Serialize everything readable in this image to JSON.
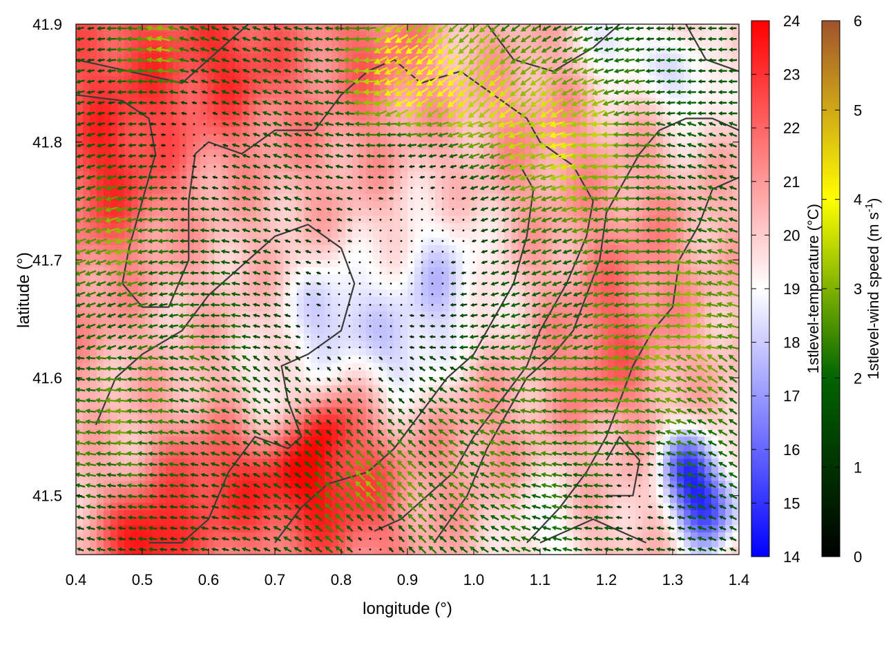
{
  "chart_data": {
    "type": "heatmap",
    "title": "",
    "xlabel": "longitude (°)",
    "ylabel": "latitude (°)",
    "xlim": [
      0.4,
      1.4
    ],
    "ylim": [
      41.45,
      41.9
    ],
    "x_ticks": [
      {
        "value": 0.4,
        "label": "0.4"
      },
      {
        "value": 0.5,
        "label": "0.5"
      },
      {
        "value": 0.6,
        "label": "0.6"
      },
      {
        "value": 0.7,
        "label": "0.7"
      },
      {
        "value": 0.8,
        "label": "0.8"
      },
      {
        "value": 0.9,
        "label": "0.9"
      },
      {
        "value": 1.0,
        "label": "1.0"
      },
      {
        "value": 1.1,
        "label": "1.1"
      },
      {
        "value": 1.2,
        "label": "1.2"
      },
      {
        "value": 1.3,
        "label": "1.3"
      },
      {
        "value": 1.4,
        "label": "1.4"
      }
    ],
    "y_ticks": [
      {
        "value": 41.5,
        "label": "41.5"
      },
      {
        "value": 41.6,
        "label": "41.6"
      },
      {
        "value": 41.7,
        "label": "41.7"
      },
      {
        "value": 41.8,
        "label": "41.8"
      },
      {
        "value": 41.9,
        "label": "41.9"
      }
    ],
    "temperature_colorbar": {
      "label": "1stlevel-temperature (°C)",
      "range": [
        14,
        24
      ],
      "ticks": [
        {
          "value": 14,
          "label": "14"
        },
        {
          "value": 15,
          "label": "15"
        },
        {
          "value": 16,
          "label": "16"
        },
        {
          "value": 17,
          "label": "17"
        },
        {
          "value": 18,
          "label": "18"
        },
        {
          "value": 19,
          "label": "19"
        },
        {
          "value": 20,
          "label": "20"
        },
        {
          "value": 21,
          "label": "21"
        },
        {
          "value": 22,
          "label": "22"
        },
        {
          "value": 23,
          "label": "23"
        },
        {
          "value": 24,
          "label": "24"
        }
      ],
      "colors": [
        "#0000ff",
        "#ffffff",
        "#ff0000"
      ]
    },
    "wind_colorbar": {
      "label_main": "1stlevel-wind speed (m s",
      "label_sup": "-1",
      "label_end": ")",
      "range": [
        0,
        6
      ],
      "ticks": [
        {
          "value": 0,
          "label": "0"
        },
        {
          "value": 1,
          "label": "1"
        },
        {
          "value": 2,
          "label": "2"
        },
        {
          "value": 3,
          "label": "3"
        },
        {
          "value": 4,
          "label": "4"
        },
        {
          "value": 5,
          "label": "5"
        },
        {
          "value": 6,
          "label": "6"
        }
      ],
      "colors": [
        "#000000",
        "#006400",
        "#ffff00",
        "#a0522d"
      ]
    },
    "temperature_anomalies": [
      {
        "lon": 0.47,
        "lat": 41.86,
        "value": 22.6,
        "spread": 0.1
      },
      {
        "lon": 0.65,
        "lat": 41.87,
        "value": 22.4,
        "spread": 0.07
      },
      {
        "lon": 0.85,
        "lat": 41.88,
        "value": 21.8,
        "spread": 0.06
      },
      {
        "lon": 0.45,
        "lat": 41.76,
        "value": 22.0,
        "spread": 0.06
      },
      {
        "lon": 0.6,
        "lat": 41.5,
        "value": 22.8,
        "spread": 0.06
      },
      {
        "lon": 0.8,
        "lat": 41.5,
        "value": 22.8,
        "spread": 0.07
      },
      {
        "lon": 0.5,
        "lat": 41.46,
        "value": 23.6,
        "spread": 0.04
      },
      {
        "lon": 0.72,
        "lat": 41.52,
        "value": 22.2,
        "spread": 0.05
      },
      {
        "lon": 1.2,
        "lat": 41.62,
        "value": 21.8,
        "spread": 0.06
      },
      {
        "lon": 1.25,
        "lat": 41.7,
        "value": 21.2,
        "spread": 0.07
      },
      {
        "lon": 0.8,
        "lat": 41.8,
        "value": 20.8,
        "spread": 0.07
      },
      {
        "lon": 1.1,
        "lat": 41.8,
        "value": 21.0,
        "spread": 0.08
      },
      {
        "lon": 1.0,
        "lat": 41.55,
        "value": 21.0,
        "spread": 0.06
      },
      {
        "lon": 0.78,
        "lat": 41.56,
        "value": 22.0,
        "spread": 0.025
      },
      {
        "lon": 0.42,
        "lat": 41.65,
        "value": 21.0,
        "spread": 0.05
      },
      {
        "lon": 0.79,
        "lat": 41.65,
        "value": 17.8,
        "spread": 0.05
      },
      {
        "lon": 0.95,
        "lat": 41.68,
        "value": 18.1,
        "spread": 0.06
      },
      {
        "lon": 1.35,
        "lat": 41.49,
        "value": 15.2,
        "spread": 0.035
      },
      {
        "lon": 1.32,
        "lat": 41.53,
        "value": 16.8,
        "spread": 0.03
      },
      {
        "lon": 1.22,
        "lat": 41.88,
        "value": 18.2,
        "spread": 0.04
      },
      {
        "lon": 1.33,
        "lat": 41.85,
        "value": 18.4,
        "spread": 0.04
      },
      {
        "lon": 0.7,
        "lat": 41.58,
        "value": 18.7,
        "spread": 0.04
      },
      {
        "lon": 0.9,
        "lat": 41.61,
        "value": 18.6,
        "spread": 0.04
      },
      {
        "lon": 1.1,
        "lat": 41.47,
        "value": 18.8,
        "spread": 0.04
      }
    ],
    "wind": {
      "direction": "westward",
      "speed_anomalies": [
        {
          "lon": 0.98,
          "lat": 41.83,
          "value": 3.8,
          "spread": 0.08
        },
        {
          "lon": 0.88,
          "lat": 41.86,
          "value": 3.6,
          "spread": 0.05
        },
        {
          "lon": 1.15,
          "lat": 41.8,
          "value": 3.4,
          "spread": 0.07
        },
        {
          "lon": 0.45,
          "lat": 41.72,
          "value": 3.0,
          "spread": 0.05
        },
        {
          "lon": 0.84,
          "lat": 41.5,
          "value": 3.0,
          "spread": 0.05
        },
        {
          "lon": 0.52,
          "lat": 41.88,
          "value": 3.2,
          "spread": 0.04
        },
        {
          "lon": 0.45,
          "lat": 41.56,
          "value": 2.6,
          "spread": 0.06
        },
        {
          "lon": 1.35,
          "lat": 41.66,
          "value": 2.6,
          "spread": 0.08
        },
        {
          "lon": 1.0,
          "lat": 41.55,
          "value": 2.4,
          "spread": 0.12
        },
        {
          "lon": 1.25,
          "lat": 41.6,
          "value": 2.4,
          "spread": 0.1
        },
        {
          "lon": 0.6,
          "lat": 41.62,
          "value": 2.2,
          "spread": 0.08
        },
        {
          "lon": 0.7,
          "lat": 41.8,
          "value": 1.8,
          "spread": 0.08
        },
        {
          "lon": 0.5,
          "lat": 41.82,
          "value": 1.4,
          "spread": 0.06
        },
        {
          "lon": 1.28,
          "lat": 41.83,
          "value": 1.8,
          "spread": 0.06
        }
      ],
      "calm_regions": [
        {
          "lon": 0.83,
          "lat": 41.66,
          "radius": 0.085
        },
        {
          "lon": 0.93,
          "lat": 41.73,
          "radius": 0.07
        },
        {
          "lon": 0.58,
          "lat": 41.8,
          "radius": 0.035
        },
        {
          "lon": 1.25,
          "lat": 41.5,
          "radius": 0.03
        },
        {
          "lon": 0.85,
          "lat": 41.46,
          "radius": 0.025
        }
      ]
    },
    "coastlines": [
      [
        [
          0.4,
          41.87
        ],
        [
          0.48,
          41.86
        ],
        [
          0.56,
          41.85
        ],
        [
          0.62,
          41.88
        ],
        [
          0.66,
          41.9
        ]
      ],
      [
        [
          0.4,
          41.84
        ],
        [
          0.47,
          41.835
        ],
        [
          0.51,
          41.82
        ],
        [
          0.52,
          41.79
        ],
        [
          0.5,
          41.75
        ],
        [
          0.48,
          41.71
        ],
        [
          0.47,
          41.68
        ]
      ],
      [
        [
          0.47,
          41.68
        ],
        [
          0.5,
          41.66
        ],
        [
          0.54,
          41.66
        ],
        [
          0.57,
          41.7
        ],
        [
          0.57,
          41.75
        ],
        [
          0.58,
          41.79
        ],
        [
          0.6,
          41.8
        ],
        [
          0.65,
          41.79
        ],
        [
          0.7,
          41.81
        ],
        [
          0.76,
          41.81
        ],
        [
          0.8,
          41.84
        ],
        [
          0.84,
          41.86
        ],
        [
          0.88,
          41.87
        ],
        [
          0.92,
          41.85
        ],
        [
          0.98,
          41.86
        ],
        [
          1.03,
          41.84
        ],
        [
          1.08,
          41.82
        ],
        [
          1.1,
          41.8
        ],
        [
          1.15,
          41.78
        ],
        [
          1.18,
          41.75
        ],
        [
          1.17,
          41.72
        ],
        [
          1.14,
          41.68
        ],
        [
          1.12,
          41.66
        ],
        [
          1.1,
          41.64
        ],
        [
          1.08,
          41.61
        ],
        [
          1.04,
          41.58
        ],
        [
          1.0,
          41.55
        ],
        [
          0.97,
          41.52
        ],
        [
          0.93,
          41.5
        ],
        [
          0.89,
          41.48
        ],
        [
          0.85,
          41.47
        ]
      ],
      [
        [
          0.43,
          41.56
        ],
        [
          0.46,
          41.6
        ],
        [
          0.5,
          41.62
        ],
        [
          0.56,
          41.64
        ],
        [
          0.6,
          41.67
        ],
        [
          0.66,
          41.7
        ],
        [
          0.7,
          41.72
        ],
        [
          0.75,
          41.73
        ],
        [
          0.8,
          41.71
        ],
        [
          0.82,
          41.68
        ],
        [
          0.8,
          41.64
        ],
        [
          0.75,
          41.62
        ],
        [
          0.71,
          41.61
        ],
        [
          0.72,
          41.58
        ],
        [
          0.74,
          41.55
        ],
        [
          0.72,
          41.54
        ],
        [
          0.67,
          41.55
        ],
        [
          0.63,
          41.52
        ],
        [
          0.6,
          41.48
        ],
        [
          0.56,
          41.46
        ],
        [
          0.51,
          41.46
        ]
      ],
      [
        [
          0.7,
          41.46
        ],
        [
          0.74,
          41.49
        ],
        [
          0.78,
          41.51
        ],
        [
          0.84,
          41.52
        ],
        [
          0.88,
          41.54
        ],
        [
          0.92,
          41.57
        ],
        [
          0.96,
          41.6
        ],
        [
          1.0,
          41.62
        ],
        [
          1.03,
          41.65
        ],
        [
          1.06,
          41.68
        ],
        [
          1.08,
          41.72
        ],
        [
          1.09,
          41.76
        ],
        [
          1.07,
          41.78
        ]
      ],
      [
        [
          0.94,
          41.46
        ],
        [
          0.99,
          41.5
        ],
        [
          1.02,
          41.54
        ],
        [
          1.05,
          41.57
        ],
        [
          1.08,
          41.6
        ],
        [
          1.12,
          41.62
        ],
        [
          1.15,
          41.64
        ],
        [
          1.17,
          41.67
        ],
        [
          1.19,
          41.7
        ],
        [
          1.2,
          41.74
        ],
        [
          1.22,
          41.76
        ],
        [
          1.25,
          41.79
        ],
        [
          1.28,
          41.81
        ],
        [
          1.32,
          41.82
        ],
        [
          1.36,
          41.82
        ],
        [
          1.4,
          41.81
        ]
      ],
      [
        [
          1.08,
          41.46
        ],
        [
          1.13,
          41.49
        ],
        [
          1.17,
          41.52
        ],
        [
          1.2,
          41.55
        ],
        [
          1.22,
          41.58
        ],
        [
          1.24,
          41.61
        ],
        [
          1.27,
          41.64
        ],
        [
          1.3,
          41.66
        ],
        [
          1.31,
          41.7
        ],
        [
          1.34,
          41.73
        ],
        [
          1.36,
          41.76
        ],
        [
          1.4,
          41.77
        ]
      ],
      [
        [
          1.1,
          41.46
        ],
        [
          1.14,
          41.47
        ],
        [
          1.18,
          41.48
        ],
        [
          1.22,
          41.47
        ],
        [
          1.26,
          41.46
        ]
      ],
      [
        [
          1.2,
          41.5
        ],
        [
          1.24,
          41.5
        ],
        [
          1.25,
          41.53
        ],
        [
          1.22,
          41.55
        ],
        [
          1.2,
          41.53
        ]
      ],
      [
        [
          1.02,
          41.9
        ],
        [
          1.06,
          41.87
        ],
        [
          1.12,
          41.86
        ],
        [
          1.18,
          41.88
        ],
        [
          1.22,
          41.9
        ]
      ],
      [
        [
          1.32,
          41.9
        ],
        [
          1.35,
          41.87
        ],
        [
          1.4,
          41.86
        ]
      ]
    ]
  }
}
